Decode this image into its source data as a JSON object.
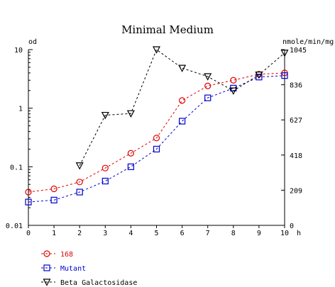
{
  "chart_data": {
    "type": "line",
    "title": "Minimal Medium",
    "xlabel": "h",
    "ylabel_left": "od",
    "ylabel_right": "nmole/min/mg",
    "x": [
      0,
      1,
      2,
      3,
      4,
      5,
      6,
      7,
      8,
      9,
      10
    ],
    "x_ticks": [
      "0",
      "1",
      "2",
      "3",
      "4",
      "5",
      "6",
      "7",
      "8",
      "9",
      "10"
    ],
    "xlim": [
      0,
      10
    ],
    "y_left_scale": "log",
    "y_left_lim": [
      0.01,
      10
    ],
    "y_left_ticks": [
      "10",
      "1",
      "0.1",
      "0.01"
    ],
    "y_right_lim": [
      0,
      1045
    ],
    "y_right_ticks": [
      "1045",
      "836",
      "627",
      "418",
      "209",
      "0"
    ],
    "grid": false,
    "legend_position": "bottom-left",
    "series": [
      {
        "name": "168",
        "axis": "left",
        "color": "#e00000",
        "marker": "circle",
        "x": [
          0,
          1,
          2,
          3,
          4,
          5,
          6,
          7,
          8,
          9,
          10
        ],
        "values": [
          0.037,
          0.042,
          0.055,
          0.095,
          0.17,
          0.31,
          1.35,
          2.4,
          3.0,
          3.8,
          4.0
        ]
      },
      {
        "name": "Mutant",
        "axis": "left",
        "color": "#0000d0",
        "marker": "square",
        "x": [
          0,
          1,
          2,
          3,
          4,
          5,
          6,
          7,
          8,
          9,
          10
        ],
        "values": [
          0.025,
          0.027,
          0.037,
          0.057,
          0.1,
          0.2,
          0.6,
          1.5,
          2.2,
          3.4,
          3.6
        ]
      },
      {
        "name": "Beta Galactosidase",
        "axis": "right",
        "color": "#000000",
        "marker": "triangle-down",
        "x": [
          2,
          3,
          4,
          5,
          6,
          7,
          8,
          9,
          10
        ],
        "values": [
          355,
          655,
          665,
          1045,
          935,
          885,
          800,
          895,
          1025
        ]
      }
    ]
  }
}
